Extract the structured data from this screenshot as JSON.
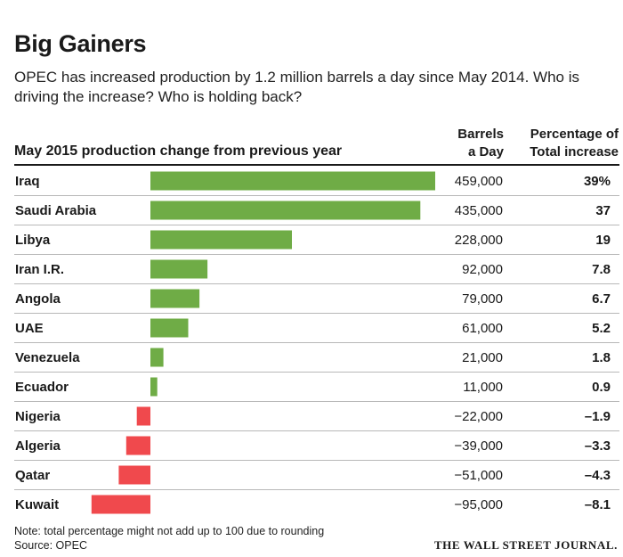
{
  "colors": {
    "positive": "#6fac46",
    "negative": "#f0494d",
    "rule": "#b8b8b8"
  },
  "chart_data": {
    "type": "bar",
    "orientation": "horizontal",
    "title": "Big Gainers",
    "subtitle": "OPEC has increased production by 1.2 million barrels a day since May 2014. Who is driving the increase? Who is holding back?",
    "section_heading": "May 2015 production change from previous year",
    "column_headers": {
      "barrels": [
        "Barrels",
        "a Day"
      ],
      "percentage": [
        "Percentage of",
        "Total increase"
      ]
    },
    "categories": [
      "Iraq",
      "Saudi Arabia",
      "Libya",
      "Iran I.R.",
      "Angola",
      "UAE",
      "Venezuela",
      "Ecuador",
      "Nigeria",
      "Algeria",
      "Qatar",
      "Kuwait"
    ],
    "values": [
      459000,
      435000,
      228000,
      92000,
      79000,
      61000,
      21000,
      11000,
      -22000,
      -39000,
      -51000,
      -95000
    ],
    "value_labels": [
      "459,000",
      "435,000",
      "228,000",
      "92,000",
      "79,000",
      "61,000",
      "21,000",
      "11,000",
      "−22,000",
      "−39,000",
      "−51,000",
      "−95,000"
    ],
    "percentages": [
      "39%",
      "37",
      "19",
      "7.8",
      "6.7",
      "5.2",
      "1.8",
      "0.9",
      "–1.9",
      "–3.3",
      "–4.3",
      "–8.1"
    ],
    "xlim": [
      -95000,
      459000
    ],
    "grid": false,
    "legend": "none"
  },
  "footer": {
    "note": "Note: total percentage might not add up to 100 due to rounding",
    "source": "Source: OPEC",
    "brand": "THE WALL STREET JOURNAL."
  }
}
